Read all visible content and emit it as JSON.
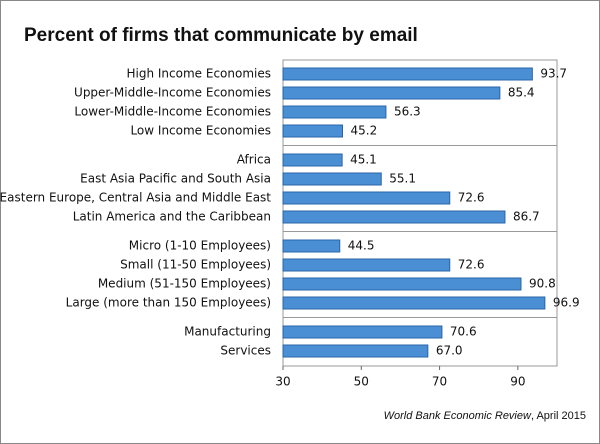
{
  "chart_data": {
    "type": "bar",
    "orientation": "horizontal",
    "title": "Percent of firms that communicate by email",
    "categories": [
      "High Income Economies",
      "Upper-Middle-Income Economies",
      "Lower-Middle-Income Economies",
      "Low Income Economies",
      null,
      "Africa",
      "East Asia Pacific and South Asia",
      "Eastern Europe, Central Asia and Middle East",
      "Latin America and the Caribbean",
      null,
      "Micro (1-10 Employees)",
      "Small (11-50 Employees)",
      "Medium (51-150 Employees)",
      "Large (more than 150 Employees)",
      null,
      "Manufacturing",
      "Services"
    ],
    "values": [
      93.7,
      85.4,
      56.3,
      45.2,
      null,
      45.1,
      55.1,
      72.6,
      86.7,
      null,
      44.5,
      72.6,
      90.8,
      96.9,
      null,
      70.6,
      67.0
    ],
    "value_labels": [
      "93.7",
      "85.4",
      "56.3",
      "45.2",
      null,
      "45.1",
      "55.1",
      "72.6",
      "86.7",
      null,
      "44.5",
      "72.6",
      "90.8",
      "96.9",
      null,
      "70.6",
      "67.0"
    ],
    "color": "#4a8fd4",
    "xlim": [
      30,
      100
    ],
    "xticks": [
      30,
      50,
      70,
      90
    ],
    "grid": false,
    "source": {
      "publication": "World Bank Economic Review",
      "date": ", April 2015"
    }
  }
}
